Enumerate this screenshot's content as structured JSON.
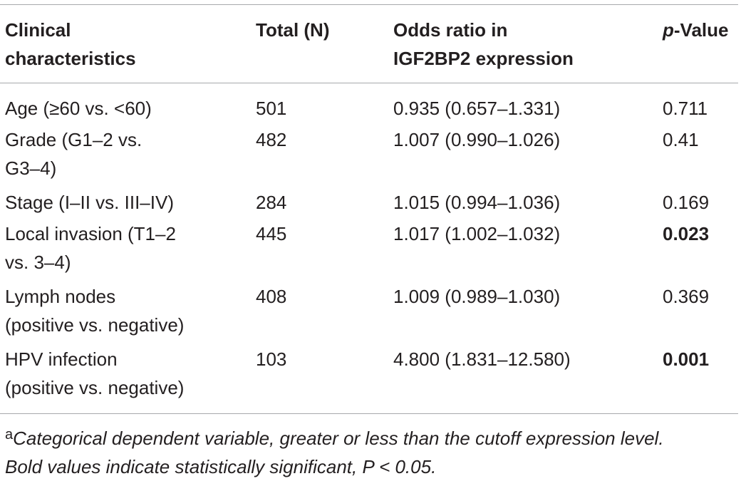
{
  "table": {
    "headers": {
      "characteristics": [
        "Clinical",
        "characteristics"
      ],
      "total": "Total (N)",
      "odds": [
        "Odds ratio in",
        "IGF2BP2 expression"
      ],
      "pvalue_prefix": "p",
      "pvalue_suffix": "-Value"
    },
    "rows": [
      {
        "label": [
          "Age (≥60 vs.  <60)"
        ],
        "total": "501",
        "odds": "0.935 (0.657–1.331)",
        "p": "0.711",
        "significant": false
      },
      {
        "label": [
          "Grade (G1–2 vs.",
          "G3–4)"
        ],
        "total": "482",
        "odds": "1.007 (0.990–1.026)",
        "p": "0.41",
        "significant": false
      },
      {
        "label": [
          "Stage (I–II vs. III–IV)"
        ],
        "total": "284",
        "odds": "1.015 (0.994–1.036)",
        "p": "0.169",
        "significant": false
      },
      {
        "label": [
          "Local invasion (T1–2",
          "vs. 3–4)"
        ],
        "total": "445",
        "odds": "1.017 (1.002–1.032)",
        "p": "0.023",
        "significant": true
      },
      {
        "label": [
          "Lymph nodes",
          "(positive vs. negative)"
        ],
        "total": "408",
        "odds": "1.009 (0.989–1.030)",
        "p": "0.369",
        "significant": false
      },
      {
        "label": [
          "HPV infection",
          "(positive vs. negative)"
        ],
        "total": "103",
        "odds": "4.800 (1.831–12.580)",
        "p": "0.001",
        "significant": true
      }
    ]
  },
  "footnote": {
    "marker": "a",
    "line1": "Categorical dependent variable, greater or less than the cutoff expression level.",
    "line2": "Bold values indicate statistically significant, P < 0.05."
  }
}
